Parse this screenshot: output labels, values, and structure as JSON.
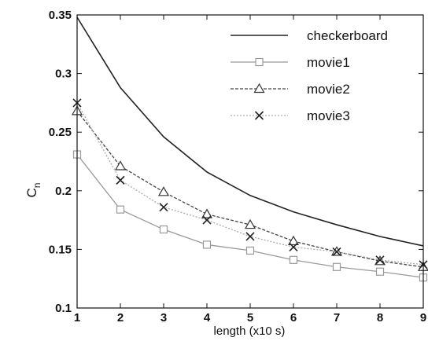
{
  "chart_data": {
    "type": "line",
    "xlabel": "length (x10 s)",
    "ylabel": "C",
    "ylabel_subscript": "n",
    "xlim": [
      1,
      9
    ],
    "ylim": [
      0.1,
      0.35
    ],
    "x_ticks": [
      "1",
      "2",
      "3",
      "4",
      "5",
      "6",
      "7",
      "8",
      "9"
    ],
    "y_ticks": [
      "0.1",
      "0.15",
      "0.2",
      "0.25",
      "0.3",
      "0.35"
    ],
    "x": [
      1,
      2,
      3,
      4,
      5,
      6,
      7,
      8,
      9
    ],
    "grid": false,
    "legend_position": "top-right",
    "series": [
      {
        "name": "checkerboard",
        "values": [
          0.348,
          0.288,
          0.246,
          0.216,
          0.196,
          0.182,
          0.171,
          0.161,
          0.153
        ],
        "marker": "none",
        "line": "solid",
        "color": "#222222"
      },
      {
        "name": "movie1",
        "values": [
          0.231,
          0.184,
          0.167,
          0.154,
          0.149,
          0.141,
          0.135,
          0.131,
          0.126
        ],
        "marker": "square",
        "line": "solid",
        "color": "#999999"
      },
      {
        "name": "movie2",
        "values": [
          0.268,
          0.221,
          0.199,
          0.18,
          0.171,
          0.157,
          0.148,
          0.14,
          0.135
        ],
        "marker": "triangle",
        "line": "dashed",
        "color": "#444444"
      },
      {
        "name": "movie3",
        "values": [
          0.275,
          0.209,
          0.186,
          0.175,
          0.161,
          0.152,
          0.148,
          0.141,
          0.137
        ],
        "marker": "x",
        "line": "dotted",
        "color": "#aaaaaa"
      }
    ]
  }
}
